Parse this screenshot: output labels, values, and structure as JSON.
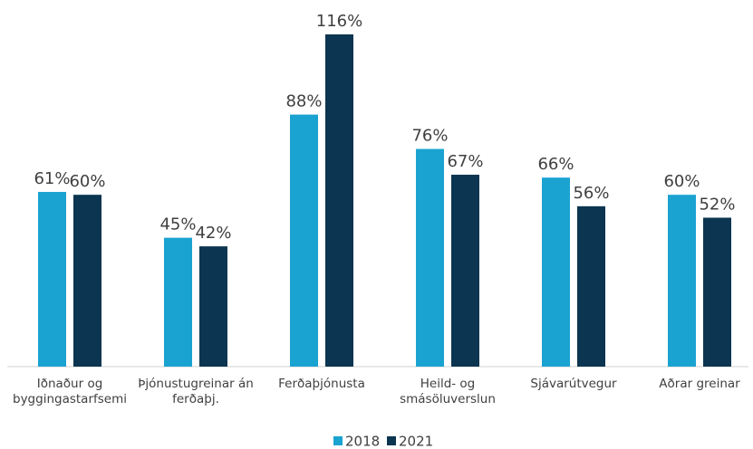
{
  "chart_data": {
    "type": "bar",
    "categories": [
      "Iðnaður og byggingastarfsemi",
      "Þjónustugreinar án ferðaþj.",
      "Ferðaþjónusta",
      "Heild- og smásöluverslun",
      "Sjávarútvegur",
      "Aðrar greinar"
    ],
    "series": [
      {
        "name": "2018",
        "color": "#1aa3d1",
        "values": [
          61,
          45,
          88,
          76,
          66,
          60
        ],
        "value_labels": [
          "61%",
          "45%",
          "88%",
          "76%",
          "66%",
          "60%"
        ]
      },
      {
        "name": "2021",
        "color": "#0b3550",
        "values": [
          60,
          42,
          116,
          67,
          56,
          52
        ],
        "value_labels": [
          "60%",
          "42%",
          "116%",
          "67%",
          "56%",
          "52%"
        ]
      }
    ],
    "legend": "bottom"
  }
}
